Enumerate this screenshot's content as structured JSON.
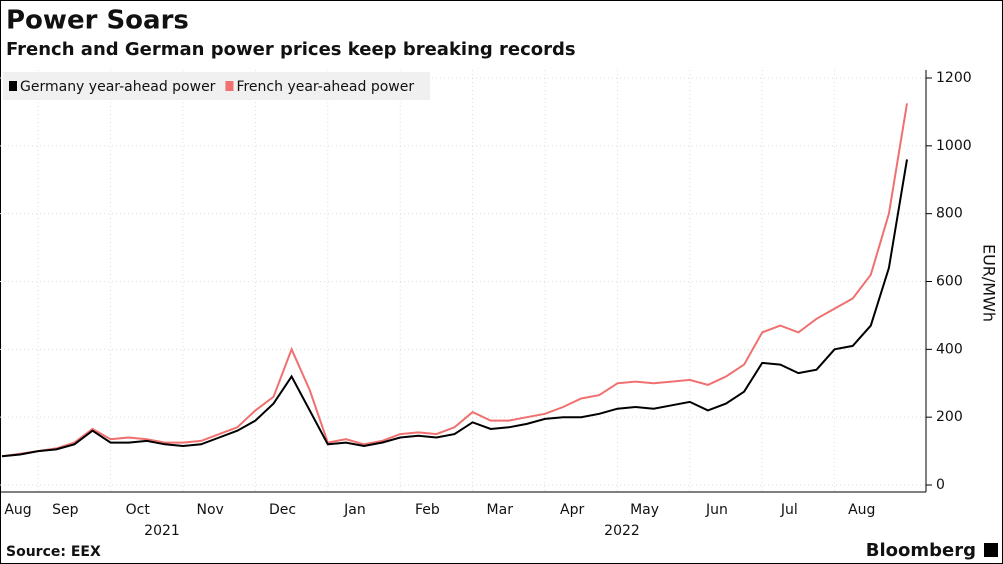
{
  "chart_data": {
    "type": "line",
    "title": "Power Soars",
    "subtitle": "French and German power prices keep breaking records",
    "source": "Source: EEX",
    "brand": "Bloomberg",
    "y_label": "EUR/MWh",
    "years": [
      "2021",
      "2022"
    ],
    "categories": [
      "Aug",
      null,
      null,
      "Sep",
      null,
      null,
      null,
      "Oct",
      null,
      null,
      null,
      "Nov",
      null,
      null,
      null,
      "Dec",
      null,
      null,
      null,
      "Jan",
      null,
      null,
      null,
      "Feb",
      null,
      null,
      null,
      "Mar",
      null,
      null,
      null,
      "Apr",
      null,
      null,
      null,
      "May",
      null,
      null,
      null,
      "Jun",
      null,
      null,
      null,
      "Jul",
      null,
      null,
      null,
      "Aug",
      null,
      null,
      null
    ],
    "series": [
      {
        "name": "Germany year-ahead power",
        "color": "#000000",
        "values": [
          85,
          90,
          100,
          105,
          120,
          160,
          125,
          125,
          130,
          120,
          115,
          120,
          140,
          160,
          190,
          240,
          320,
          220,
          120,
          125,
          115,
          125,
          140,
          145,
          140,
          150,
          185,
          165,
          170,
          180,
          195,
          200,
          200,
          210,
          225,
          230,
          225,
          235,
          245,
          220,
          240,
          275,
          360,
          355,
          330,
          340,
          400,
          410,
          470,
          640,
          960
        ]
      },
      {
        "name": "French year-ahead power",
        "color": "#f07070",
        "values": [
          85,
          92,
          100,
          108,
          125,
          165,
          135,
          140,
          135,
          125,
          125,
          130,
          150,
          170,
          220,
          260,
          400,
          280,
          125,
          135,
          120,
          130,
          150,
          155,
          150,
          170,
          215,
          190,
          190,
          200,
          210,
          230,
          255,
          265,
          300,
          305,
          300,
          305,
          310,
          295,
          320,
          355,
          450,
          470,
          450,
          490,
          520,
          550,
          620,
          800,
          1125
        ]
      }
    ],
    "ylim": [
      0,
      1200
    ],
    "yticks": [
      0,
      200,
      400,
      600,
      800,
      1000,
      1200
    ],
    "grid": true,
    "legend": "top-left"
  }
}
